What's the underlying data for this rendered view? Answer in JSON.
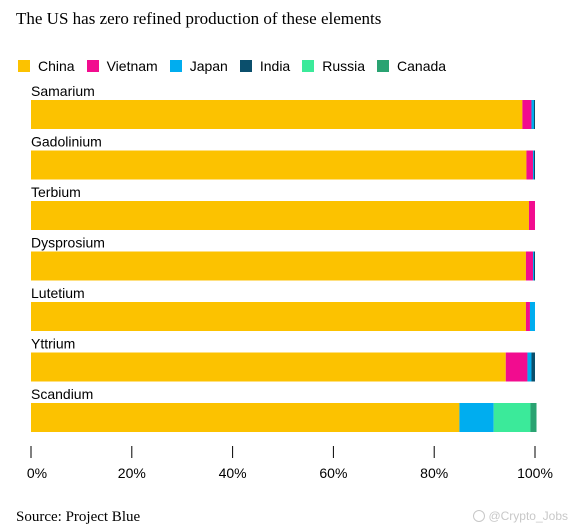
{
  "title": "The US has zero refined production of these elements",
  "source": "Source: Project Blue",
  "watermark": "@Crypto_Jobs",
  "chart_data": {
    "type": "bar",
    "orientation": "horizontal",
    "stacked": true,
    "title": "The US has zero refined production of these elements",
    "categories": [
      "Samarium",
      "Gadolinium",
      "Terbium",
      "Dysprosium",
      "Lutetium",
      "Yttrium",
      "Scandium"
    ],
    "series": [
      {
        "name": "China",
        "color": "#FCC200",
        "values": [
          97.5,
          98.3,
          98.8,
          98.2,
          98.2,
          94.2,
          85.0
        ]
      },
      {
        "name": "Vietnam",
        "color": "#F20C8F",
        "values": [
          1.8,
          1.3,
          1.2,
          1.4,
          0.8,
          4.3,
          0.0
        ]
      },
      {
        "name": "Japan",
        "color": "#00ADEF",
        "values": [
          0.5,
          0.2,
          0.0,
          0.2,
          1.0,
          0.8,
          6.8
        ]
      },
      {
        "name": "India",
        "color": "#0B4F6C",
        "values": [
          0.2,
          0.2,
          0.0,
          0.2,
          0.0,
          0.7,
          0.0
        ]
      },
      {
        "name": "Russia",
        "color": "#3BEA9A",
        "values": [
          0.0,
          0.0,
          0.0,
          0.0,
          0.0,
          0.0,
          7.3
        ]
      },
      {
        "name": "Canada",
        "color": "#2AA372",
        "values": [
          0.0,
          0.0,
          0.0,
          0.0,
          0.0,
          0.0,
          1.2
        ]
      }
    ],
    "xlim": [
      0,
      100
    ],
    "xticks": [
      0,
      20,
      40,
      60,
      80,
      100
    ],
    "xtick_labels": [
      "0%",
      "20%",
      "40%",
      "60%",
      "80%",
      "100%"
    ],
    "legend_position": "top-left",
    "grid": false
  }
}
